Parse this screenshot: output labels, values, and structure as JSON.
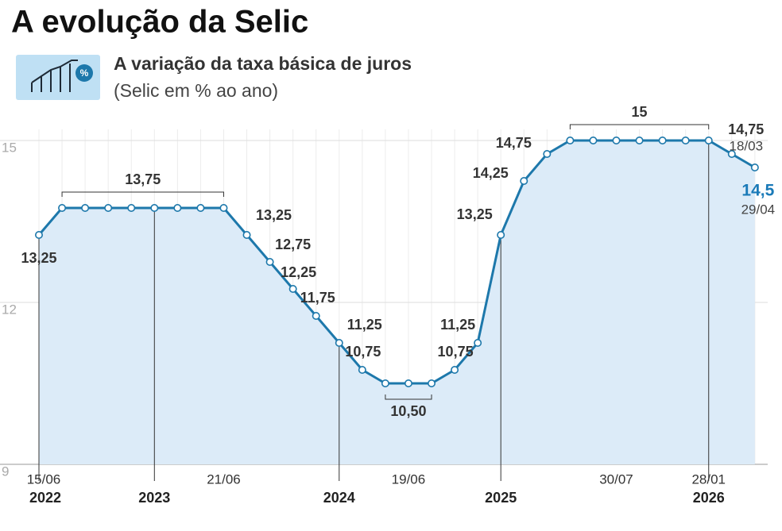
{
  "chart_data": {
    "type": "line",
    "title": "A evolução da Selic",
    "subtitle": "A variação da taxa básica de juros",
    "unit_note": "(Selic em % ao ano)",
    "categories": [
      "15/06",
      null,
      null,
      null,
      null,
      null,
      null,
      null,
      "21/06",
      null,
      null,
      null,
      null,
      null,
      null,
      null,
      "19/06",
      null,
      null,
      null,
      null,
      null,
      null,
      null,
      null,
      "30/07",
      null,
      null,
      null,
      "28/01",
      "18/03",
      "29/04"
    ],
    "years": [
      "2022",
      null,
      null,
      null,
      null,
      "2023",
      null,
      null,
      null,
      null,
      null,
      null,
      null,
      "2024",
      null,
      null,
      null,
      null,
      null,
      null,
      "2025",
      null,
      null,
      null,
      null,
      null,
      null,
      null,
      null,
      "2026",
      null,
      null
    ],
    "values": [
      13.25,
      13.75,
      13.75,
      13.75,
      13.75,
      13.75,
      13.75,
      13.75,
      13.75,
      13.25,
      12.75,
      12.25,
      11.75,
      11.25,
      10.75,
      10.5,
      10.5,
      10.5,
      10.75,
      11.25,
      13.25,
      14.25,
      14.75,
      15,
      15,
      15,
      15,
      15,
      15,
      15,
      14.75,
      14.5
    ],
    "value_labels": [
      "13,25",
      "13,75",
      null,
      null,
      null,
      null,
      null,
      null,
      null,
      "13,25",
      "12,75",
      "12,25",
      "11,75",
      "11,25",
      "10,75",
      "10,50",
      null,
      null,
      "10,75",
      "11,25",
      "13,25",
      "14,25",
      "14,75",
      "15",
      null,
      null,
      null,
      null,
      null,
      null,
      "14,75",
      "14,5"
    ],
    "color": "#1d78ab",
    "fill": "#dcebf8",
    "highlight_color": "#1a7ab8",
    "ylim": [
      9,
      15.5
    ],
    "yticks": [
      9,
      12,
      15
    ],
    "grid": true
  }
}
